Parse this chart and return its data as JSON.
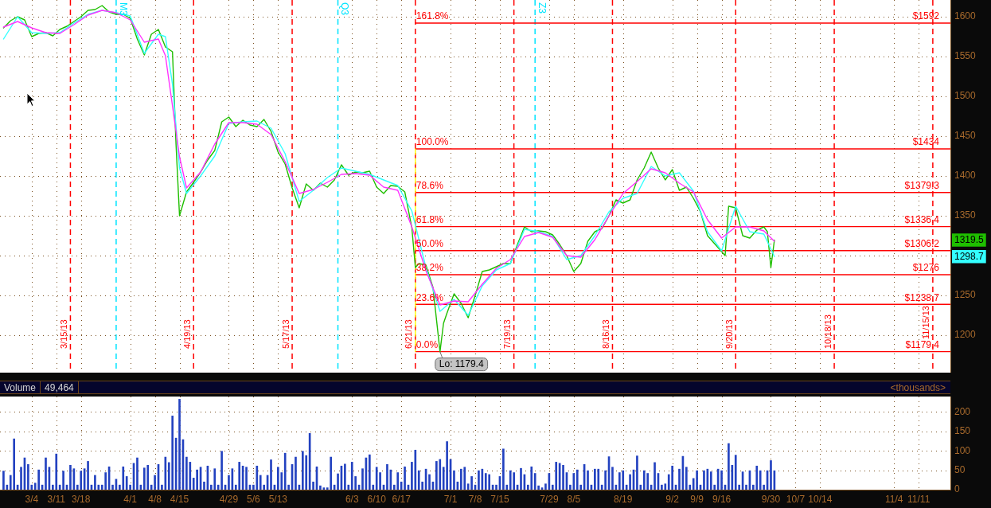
{
  "chart_data": [
    {
      "type": "line",
      "xlim": [
        "--02-23",
        "--11-20"
      ],
      "ylim": [
        1153,
        1621
      ],
      "xticks": [
        {
          "value": "--03-04",
          "label": null
        },
        {
          "value": "--03-11",
          "label": null
        },
        {
          "value": "--03-18",
          "label": null
        },
        {
          "value": "--04-01",
          "label": null
        },
        {
          "value": "--04-08",
          "label": null
        },
        {
          "value": "--04-15",
          "label": null
        },
        {
          "value": "--04-29",
          "label": null
        },
        {
          "value": "--05-06",
          "label": null
        },
        {
          "value": "--05-13",
          "label": null
        },
        {
          "value": "--06-03",
          "label": null
        },
        {
          "value": "--06-10",
          "label": null
        },
        {
          "value": "--06-17",
          "label": null
        },
        {
          "value": "--07-01",
          "label": null
        },
        {
          "value": "--07-08",
          "label": null
        },
        {
          "value": "--07-15",
          "label": null
        },
        {
          "value": "--07-29",
          "label": null
        },
        {
          "value": "--08-05",
          "label": null
        },
        {
          "value": "--08-19",
          "label": null
        },
        {
          "value": "--09-02",
          "label": null
        },
        {
          "value": "--09-09",
          "label": null
        },
        {
          "value": "--09-16",
          "label": null
        },
        {
          "value": "--09-30",
          "label": null
        },
        {
          "value": "--10-07",
          "label": null
        },
        {
          "value": "--10-14",
          "label": null
        },
        {
          "value": "--11-04",
          "label": null
        },
        {
          "value": "--11-11",
          "label": null
        }
      ],
      "yticks": [
        1200,
        1250,
        1298.7,
        {
          "value": 1300,
          "label": null
        },
        1319.5,
        1350,
        1400,
        1450,
        1500,
        1550,
        1600
      ],
      "grid": true,
      "tick_labels": "y",
      "series": [
        {
          "name": "161.8%",
          "color": "#ff0000",
          "x": [
            "--06-21",
            "--11-20"
          ],
          "values": [
            1592,
            1592
          ],
          "value_labels": [
            null,
            "$1592"
          ]
        },
        {
          "name": "100.0%",
          "color": "#ff0000",
          "x": [
            "--06-21",
            "--11-20"
          ],
          "values": [
            1434,
            1434
          ],
          "value_labels": [
            null,
            "$1434"
          ]
        },
        {
          "name": "78.6%",
          "color": "#ff0000",
          "x": [
            "--06-21",
            "--11-20"
          ],
          "values": [
            1379.3,
            1379.3
          ],
          "value_labels": [
            null,
            "$1379.3"
          ]
        },
        {
          "name": "61.8%",
          "color": "#ff0000",
          "x": [
            "--06-21",
            "--11-20"
          ],
          "values": [
            1336.4,
            1336.4
          ],
          "value_labels": [
            null,
            "$1336.4"
          ]
        },
        {
          "name": "50.0%",
          "color": "#ff0000",
          "x": [
            "--06-21",
            "--11-20"
          ],
          "values": [
            1306.2,
            1306.2
          ],
          "value_labels": [
            null,
            "$1306.2"
          ]
        },
        {
          "name": "38.2%",
          "color": "#ff0000",
          "x": [
            "--06-21",
            "--11-20"
          ],
          "values": [
            1276,
            1276
          ],
          "value_labels": [
            null,
            "$1276"
          ]
        },
        {
          "name": "23.6%",
          "color": "#ff0000",
          "x": [
            "--06-21",
            "--11-20"
          ],
          "values": [
            1238.7,
            1238.7
          ],
          "value_labels": [
            null,
            "$1238.7"
          ]
        },
        {
          "name": "0.0%",
          "color": "#ff0000",
          "x": [
            "--06-21",
            "--11-20"
          ],
          "values": [
            1179.4,
            1179.4
          ],
          "value_labels": [
            null,
            "$1179.4"
          ]
        },
        {
          "color": "#ffff00",
          "line_style": "dashed",
          "x": [
            "--06-21",
            "--06-21"
          ],
          "values": [
            1434,
            1179.4
          ]
        },
        {
          "color": "#1fbf00",
          "x": [
            "--02-24",
            "--02-26",
            "--02-28",
            "--03-02",
            "--03-04",
            "--03-06",
            "--03-08",
            "--03-10",
            "--03-12",
            "--03-14",
            "--03-16",
            "--03-18",
            "--03-20",
            "--03-22",
            "--03-24",
            "--03-26",
            "--03-28",
            "--03-30",
            "--04-01",
            "--04-03",
            "--04-05",
            "--04-07",
            "--04-09",
            "--04-11",
            "--04-13",
            "--04-14",
            "--04-15",
            "--04-16",
            "--04-17",
            "--04-19",
            "--04-21",
            "--04-23",
            "--04-25",
            "--04-27",
            "--04-29",
            "--05-01",
            "--05-03",
            "--05-05",
            "--05-07",
            "--05-09",
            "--05-11",
            "--05-13",
            "--05-15",
            "--05-17",
            "--05-19",
            "--05-21",
            "--05-23",
            "--05-25",
            "--05-27",
            "--05-29",
            "--05-31",
            "--06-02",
            "--06-04",
            "--06-06",
            "--06-08",
            "--06-10",
            "--06-12",
            "--06-14",
            "--06-16",
            "--06-18",
            "--06-20",
            "--06-21",
            "--06-22",
            "--06-24",
            "--06-26",
            "--06-28",
            "--06-29",
            "--06-30",
            "--07-02",
            "--07-04",
            "--07-06",
            "--07-08",
            "--07-10",
            "--07-12",
            "--07-14",
            "--07-16",
            "--07-18",
            "--07-20",
            "--07-22",
            "--07-24",
            "--07-26",
            "--07-28",
            "--07-30",
            "--08-01",
            "--08-03",
            "--08-05",
            "--08-07",
            "--08-09",
            "--08-11",
            "--08-13",
            "--08-15",
            "--08-17",
            "--08-19",
            "--08-21",
            "--08-23",
            "--08-25",
            "--08-27",
            "--08-29",
            "--08-31",
            "--09-02",
            "--09-04",
            "--09-06",
            "--09-08",
            "--09-10",
            "--09-12",
            "--09-14",
            "--09-16",
            "--09-17",
            "--09-18",
            "--09-20",
            "--09-22",
            "--09-24",
            "--09-26",
            "--09-28",
            "--09-29",
            "--09-30",
            "--10-01"
          ],
          "values": [
            1586,
            1595,
            1600,
            1596,
            1575,
            1579,
            1580,
            1576,
            1584,
            1588,
            1594,
            1600,
            1608,
            1609,
            1614,
            1606,
            1603,
            1603,
            1598,
            1572,
            1552,
            1578,
            1584,
            1562,
            1556,
            1440,
            1350,
            1365,
            1380,
            1392,
            1405,
            1420,
            1432,
            1468,
            1474,
            1462,
            1470,
            1464,
            1462,
            1471,
            1456,
            1430,
            1415,
            1385,
            1360,
            1390,
            1382,
            1391,
            1386,
            1395,
            1414,
            1401,
            1405,
            1404,
            1406,
            1386,
            1378,
            1388,
            1387,
            1380,
            1335,
            1285,
            1290,
            1288,
            1260,
            1179.4,
            1215,
            1228,
            1252,
            1240,
            1222,
            1250,
            1280,
            1282,
            1286,
            1290,
            1290,
            1314,
            1336,
            1330,
            1331,
            1330,
            1326,
            1314,
            1300,
            1280,
            1290,
            1318,
            1330,
            1334,
            1350,
            1370,
            1366,
            1370,
            1395,
            1410,
            1430,
            1410,
            1395,
            1408,
            1382,
            1386,
            1372,
            1355,
            1325,
            1315,
            1305,
            1300,
            1362,
            1360,
            1325,
            1322,
            1332,
            1336,
            1330,
            1285,
            1319.5
          ]
        },
        {
          "color": "#33ffff",
          "x": [
            "--02-24",
            "--02-28",
            "--03-04",
            "--03-08",
            "--03-12",
            "--03-16",
            "--03-20",
            "--03-24",
            "--03-28",
            "--04-01",
            "--04-05",
            "--04-09",
            "--04-11",
            "--04-13",
            "--04-15",
            "--04-17",
            "--04-21",
            "--04-25",
            "--04-29",
            "--05-03",
            "--05-07",
            "--05-11",
            "--05-15",
            "--05-19",
            "--05-23",
            "--05-27",
            "--05-31",
            "--06-04",
            "--06-08",
            "--06-12",
            "--06-16",
            "--06-20",
            "--06-24",
            "--06-28",
            "--07-02",
            "--07-06",
            "--07-10",
            "--07-14",
            "--07-18",
            "--07-22",
            "--07-26",
            "--07-30",
            "--08-03",
            "--08-07",
            "--08-11",
            "--08-15",
            "--08-19",
            "--08-23",
            "--08-27",
            "--08-31",
            "--09-04",
            "--09-08",
            "--09-12",
            "--09-16",
            "--09-20",
            "--09-24",
            "--09-28",
            "--10-01"
          ],
          "values": [
            1572,
            1600,
            1580,
            1579,
            1580,
            1592,
            1603,
            1608,
            1605,
            1601,
            1554,
            1578,
            1575,
            1515,
            1410,
            1378,
            1400,
            1425,
            1466,
            1468,
            1469,
            1460,
            1428,
            1368,
            1382,
            1398,
            1410,
            1406,
            1402,
            1395,
            1388,
            1356,
            1285,
            1230,
            1245,
            1225,
            1262,
            1282,
            1290,
            1333,
            1330,
            1324,
            1295,
            1300,
            1325,
            1355,
            1372,
            1378,
            1412,
            1400,
            1404,
            1381,
            1330,
            1306,
            1362,
            1330,
            1327,
            1298.7
          ]
        },
        {
          "color": "#ff33ff",
          "x": [
            "--02-24",
            "--02-28",
            "--03-04",
            "--03-08",
            "--03-12",
            "--03-16",
            "--03-20",
            "--03-24",
            "--03-28",
            "--04-01",
            "--04-05",
            "--04-09",
            "--04-11",
            "--04-13",
            "--04-15",
            "--04-17",
            "--04-21",
            "--04-25",
            "--04-29",
            "--05-03",
            "--05-07",
            "--05-11",
            "--05-15",
            "--05-19",
            "--05-23",
            "--05-27",
            "--05-31",
            "--06-04",
            "--06-08",
            "--06-12",
            "--06-16",
            "--06-20",
            "--06-24",
            "--06-28",
            "--07-02",
            "--07-06",
            "--07-10",
            "--07-14",
            "--07-18",
            "--07-22",
            "--07-26",
            "--07-30",
            "--08-03",
            "--08-07",
            "--08-11",
            "--08-15",
            "--08-19",
            "--08-23",
            "--08-27",
            "--08-31",
            "--09-04",
            "--09-08",
            "--09-12",
            "--09-16",
            "--09-20",
            "--09-24",
            "--09-28",
            "--10-01"
          ],
          "values": [
            1587,
            1594,
            1586,
            1580,
            1579,
            1590,
            1602,
            1608,
            1605,
            1596,
            1568,
            1572,
            1551,
            1488,
            1424,
            1385,
            1405,
            1440,
            1467,
            1467,
            1465,
            1452,
            1418,
            1378,
            1383,
            1392,
            1402,
            1403,
            1401,
            1386,
            1382,
            1336,
            1281,
            1238,
            1243,
            1242,
            1264,
            1284,
            1295,
            1324,
            1329,
            1323,
            1300,
            1298,
            1320,
            1350,
            1378,
            1393,
            1409,
            1404,
            1391,
            1380,
            1345,
            1322,
            1336,
            1336,
            1331,
            1318
          ]
        }
      ],
      "ref_lines": [
        {
          "axis": "x",
          "value": "--03-15",
          "label": "3/15/13",
          "color": "#ff0000",
          "line_style": "dashed"
        },
        {
          "axis": "x",
          "value": "--04-19",
          "label": "4/19/13",
          "color": "#ff0000",
          "line_style": "dashed"
        },
        {
          "axis": "x",
          "value": "--05-17",
          "label": "5/17/13",
          "color": "#ff0000",
          "line_style": "dashed"
        },
        {
          "axis": "x",
          "value": "--06-21",
          "label": "6/21/13",
          "color": "#ff0000",
          "line_style": "dashed"
        },
        {
          "axis": "x",
          "value": "--07-19",
          "label": "7/19/13",
          "color": "#ff0000",
          "line_style": "dashed"
        },
        {
          "axis": "x",
          "value": "--08-16",
          "label": "8/16/13",
          "color": "#ff0000",
          "line_style": "dashed"
        },
        {
          "axis": "x",
          "value": "--09-20",
          "label": "9/20/13",
          "color": "#ff0000",
          "line_style": "dashed"
        },
        {
          "axis": "x",
          "value": "--10-18",
          "label": "10/18/13",
          "color": "#ff0000",
          "line_style": "dashed"
        },
        {
          "axis": "x",
          "value": "--11-15",
          "label": "11/15/13",
          "color": "#ff0000",
          "line_style": "dashed"
        },
        {
          "axis": "x",
          "value": "--03-28",
          "color": "#00e5ff",
          "line_style": "dashed"
        },
        {
          "axis": "x",
          "value": "--05-30",
          "color": "#00e5ff",
          "line_style": "dashed"
        },
        {
          "axis": "x",
          "value": "--07-25",
          "color": "#00e5ff",
          "line_style": "dashed"
        }
      ],
      "annotations": [
        {
          "text": "M3",
          "x": "--03-28",
          "y": 1618
        },
        {
          "text": "Q3",
          "x": "--05-30",
          "y": 1618
        },
        {
          "text": "Z3",
          "x": "--07-25",
          "y": 1618
        },
        {
          "text": "Lo: 1179.4",
          "x": "--06-28",
          "y": 1179.4
        }
      ]
    },
    {
      "type": "bar",
      "title": "Volume",
      "subtitle": "49,464",
      "ylabel": "<thousands>",
      "color": "#2342c0",
      "xlim": [
        "--02-23",
        "--11-20"
      ],
      "ylim": [
        0,
        240
      ],
      "xticks": [
        {
          "value": "--03-04",
          "label": "3/4"
        },
        {
          "value": "--03-11",
          "label": "3/11"
        },
        {
          "value": "--03-18",
          "label": "3/18"
        },
        {
          "value": "--04-01",
          "label": "4/1"
        },
        {
          "value": "--04-08",
          "label": "4/8"
        },
        {
          "value": "--04-15",
          "label": "4/15"
        },
        {
          "value": "--04-29",
          "label": "4/29"
        },
        {
          "value": "--05-06",
          "label": "5/6"
        },
        {
          "value": "--05-13",
          "label": "5/13"
        },
        {
          "value": "--06-03",
          "label": "6/3"
        },
        {
          "value": "--06-10",
          "label": "6/10"
        },
        {
          "value": "--06-17",
          "label": "6/17"
        },
        {
          "value": "--07-01",
          "label": "7/1"
        },
        {
          "value": "--07-08",
          "label": "7/8"
        },
        {
          "value": "--07-15",
          "label": "7/15"
        },
        {
          "value": "--07-29",
          "label": "7/29"
        },
        {
          "value": "--08-05",
          "label": "8/5"
        },
        {
          "value": "--08-19",
          "label": "8/19"
        },
        {
          "value": "--09-02",
          "label": "9/2"
        },
        {
          "value": "--09-09",
          "label": "9/9"
        },
        {
          "value": "--09-16",
          "label": "9/16"
        },
        {
          "value": "--09-30",
          "label": "9/30"
        },
        {
          "value": "--10-07",
          "label": "10/7"
        },
        {
          "value": "--10-14",
          "label": "10/14"
        },
        {
          "value": "--11-04",
          "label": "11/4"
        },
        {
          "value": "--11-11",
          "label": "11/11"
        }
      ],
      "yticks": [
        0,
        50,
        100,
        150,
        200
      ],
      "grid": true,
      "x": [
        "--02-24",
        "--02-25",
        "--02-26",
        "--02-27",
        "--02-28",
        "--03-01",
        "--03-02",
        "--03-03",
        "--03-04",
        "--03-05",
        "--03-06",
        "--03-07",
        "--03-08",
        "--03-09",
        "--03-10",
        "--03-11",
        "--03-12",
        "--03-13",
        "--03-14",
        "--03-15",
        "--03-16",
        "--03-17",
        "--03-18",
        "--03-19",
        "--03-20",
        "--03-21",
        "--03-22",
        "--03-23",
        "--03-24",
        "--03-25",
        "--03-26",
        "--03-27",
        "--03-28",
        "--03-29",
        "--03-30",
        "--03-31",
        "--04-01",
        "--04-02",
        "--04-03",
        "--04-04",
        "--04-05",
        "--04-06",
        "--04-07",
        "--04-08",
        "--04-09",
        "--04-10",
        "--04-11",
        "--04-12",
        "--04-13",
        "--04-14",
        "--04-15",
        "--04-16",
        "--04-17",
        "--04-18",
        "--04-19",
        "--04-20",
        "--04-21",
        "--04-22",
        "--04-23",
        "--04-24",
        "--04-25",
        "--04-26",
        "--04-27",
        "--04-28",
        "--04-29",
        "--04-30",
        "--05-01",
        "--05-02",
        "--05-03",
        "--05-04",
        "--05-05",
        "--05-06",
        "--05-07",
        "--05-08",
        "--05-09",
        "--05-10",
        "--05-11",
        "--05-12",
        "--05-13",
        "--05-14",
        "--05-15",
        "--05-16",
        "--05-17",
        "--05-18",
        "--05-19",
        "--05-20",
        "--05-21",
        "--05-22",
        "--05-23",
        "--05-24",
        "--05-25",
        "--05-26",
        "--05-27",
        "--05-28",
        "--05-29",
        "--05-30",
        "--05-31",
        "--06-01",
        "--06-02",
        "--06-03",
        "--06-04",
        "--06-05",
        "--06-06",
        "--06-07",
        "--06-08",
        "--06-09",
        "--06-10",
        "--06-11",
        "--06-12",
        "--06-13",
        "--06-14",
        "--06-15",
        "--06-16",
        "--06-17",
        "--06-18",
        "--06-19",
        "--06-20",
        "--06-21",
        "--06-22",
        "--06-23",
        "--06-24",
        "--06-25",
        "--06-26",
        "--06-27",
        "--06-28",
        "--06-29",
        "--06-30",
        "--07-01",
        "--07-02",
        "--07-03",
        "--07-04",
        "--07-05",
        "--07-06",
        "--07-07",
        "--07-08",
        "--07-09",
        "--07-10",
        "--07-11",
        "--07-12",
        "--07-13",
        "--07-14",
        "--07-15",
        "--07-16",
        "--07-17",
        "--07-18",
        "--07-19",
        "--07-20",
        "--07-21",
        "--07-22",
        "--07-23",
        "--07-24",
        "--07-25",
        "--07-26",
        "--07-27",
        "--07-28",
        "--07-29",
        "--07-30",
        "--07-31",
        "--08-01",
        "--08-02",
        "--08-03",
        "--08-04",
        "--08-05",
        "--08-06",
        "--08-07",
        "--08-08",
        "--08-09",
        "--08-10",
        "--08-11",
        "--08-12",
        "--08-13",
        "--08-14",
        "--08-15",
        "--08-16",
        "--08-17",
        "--08-18",
        "--08-19",
        "--08-20",
        "--08-21",
        "--08-22",
        "--08-23",
        "--08-24",
        "--08-25",
        "--08-26",
        "--08-27",
        "--08-28",
        "--08-29",
        "--08-30",
        "--08-31",
        "--09-01",
        "--09-02",
        "--09-03",
        "--09-04",
        "--09-05",
        "--09-06",
        "--09-07",
        "--09-08",
        "--09-09",
        "--09-10",
        "--09-11",
        "--09-12",
        "--09-13",
        "--09-14",
        "--09-15",
        "--09-16",
        "--09-17",
        "--09-18",
        "--09-19",
        "--09-20",
        "--09-21",
        "--09-22",
        "--09-23",
        "--09-24",
        "--09-25",
        "--09-26",
        "--09-27",
        "--09-28",
        "--09-29",
        "--09-30",
        "--10-01"
      ],
      "values": [
        48,
        12,
        37,
        131,
        12,
        58,
        82,
        65,
        12,
        17,
        51,
        12,
        82,
        58,
        12,
        92,
        12,
        48,
        12,
        63,
        54,
        12,
        48,
        54,
        73,
        12,
        37,
        12,
        12,
        44,
        59,
        12,
        27,
        12,
        59,
        34,
        12,
        68,
        82,
        12,
        56,
        63,
        12,
        37,
        65,
        12,
        84,
        70,
        190,
        133,
        233,
        129,
        84,
        71,
        30,
        51,
        58,
        20,
        61,
        12,
        54,
        12,
        99,
        12,
        37,
        54,
        12,
        71,
        61,
        58,
        12,
        12,
        61,
        37,
        12,
        37,
        77,
        12,
        58,
        44,
        94,
        12,
        65,
        84,
        12,
        99,
        88,
        145,
        20,
        59,
        10,
        5,
        5,
        84,
        12,
        41,
        61,
        66,
        12,
        71,
        34,
        12,
        54,
        82,
        90,
        12,
        58,
        44,
        12,
        65,
        51,
        12,
        44,
        20,
        59,
        12,
        71,
        102,
        49,
        20,
        53,
        39,
        20,
        73,
        78,
        58,
        124,
        78,
        49,
        20,
        53,
        58,
        15,
        34,
        12,
        49,
        53,
        42,
        39,
        12,
        12,
        34,
        105,
        12,
        49,
        44,
        12,
        55,
        39,
        12,
        59,
        42,
        10,
        5,
        15,
        42,
        12,
        71,
        68,
        63,
        44,
        12,
        42,
        51,
        12,
        65,
        49,
        12,
        53,
        53,
        12,
        49,
        85,
        58,
        12,
        44,
        49,
        12,
        39,
        51,
        87,
        12,
        49,
        42,
        12,
        70,
        42,
        12,
        15,
        39,
        61,
        12,
        53,
        86,
        58,
        12,
        29,
        49,
        12,
        49,
        53,
        46,
        12,
        53,
        49,
        12,
        119,
        63,
        89,
        12,
        46,
        12,
        49,
        12,
        61,
        49,
        12,
        49,
        75,
        49
      ]
    }
  ]
}
